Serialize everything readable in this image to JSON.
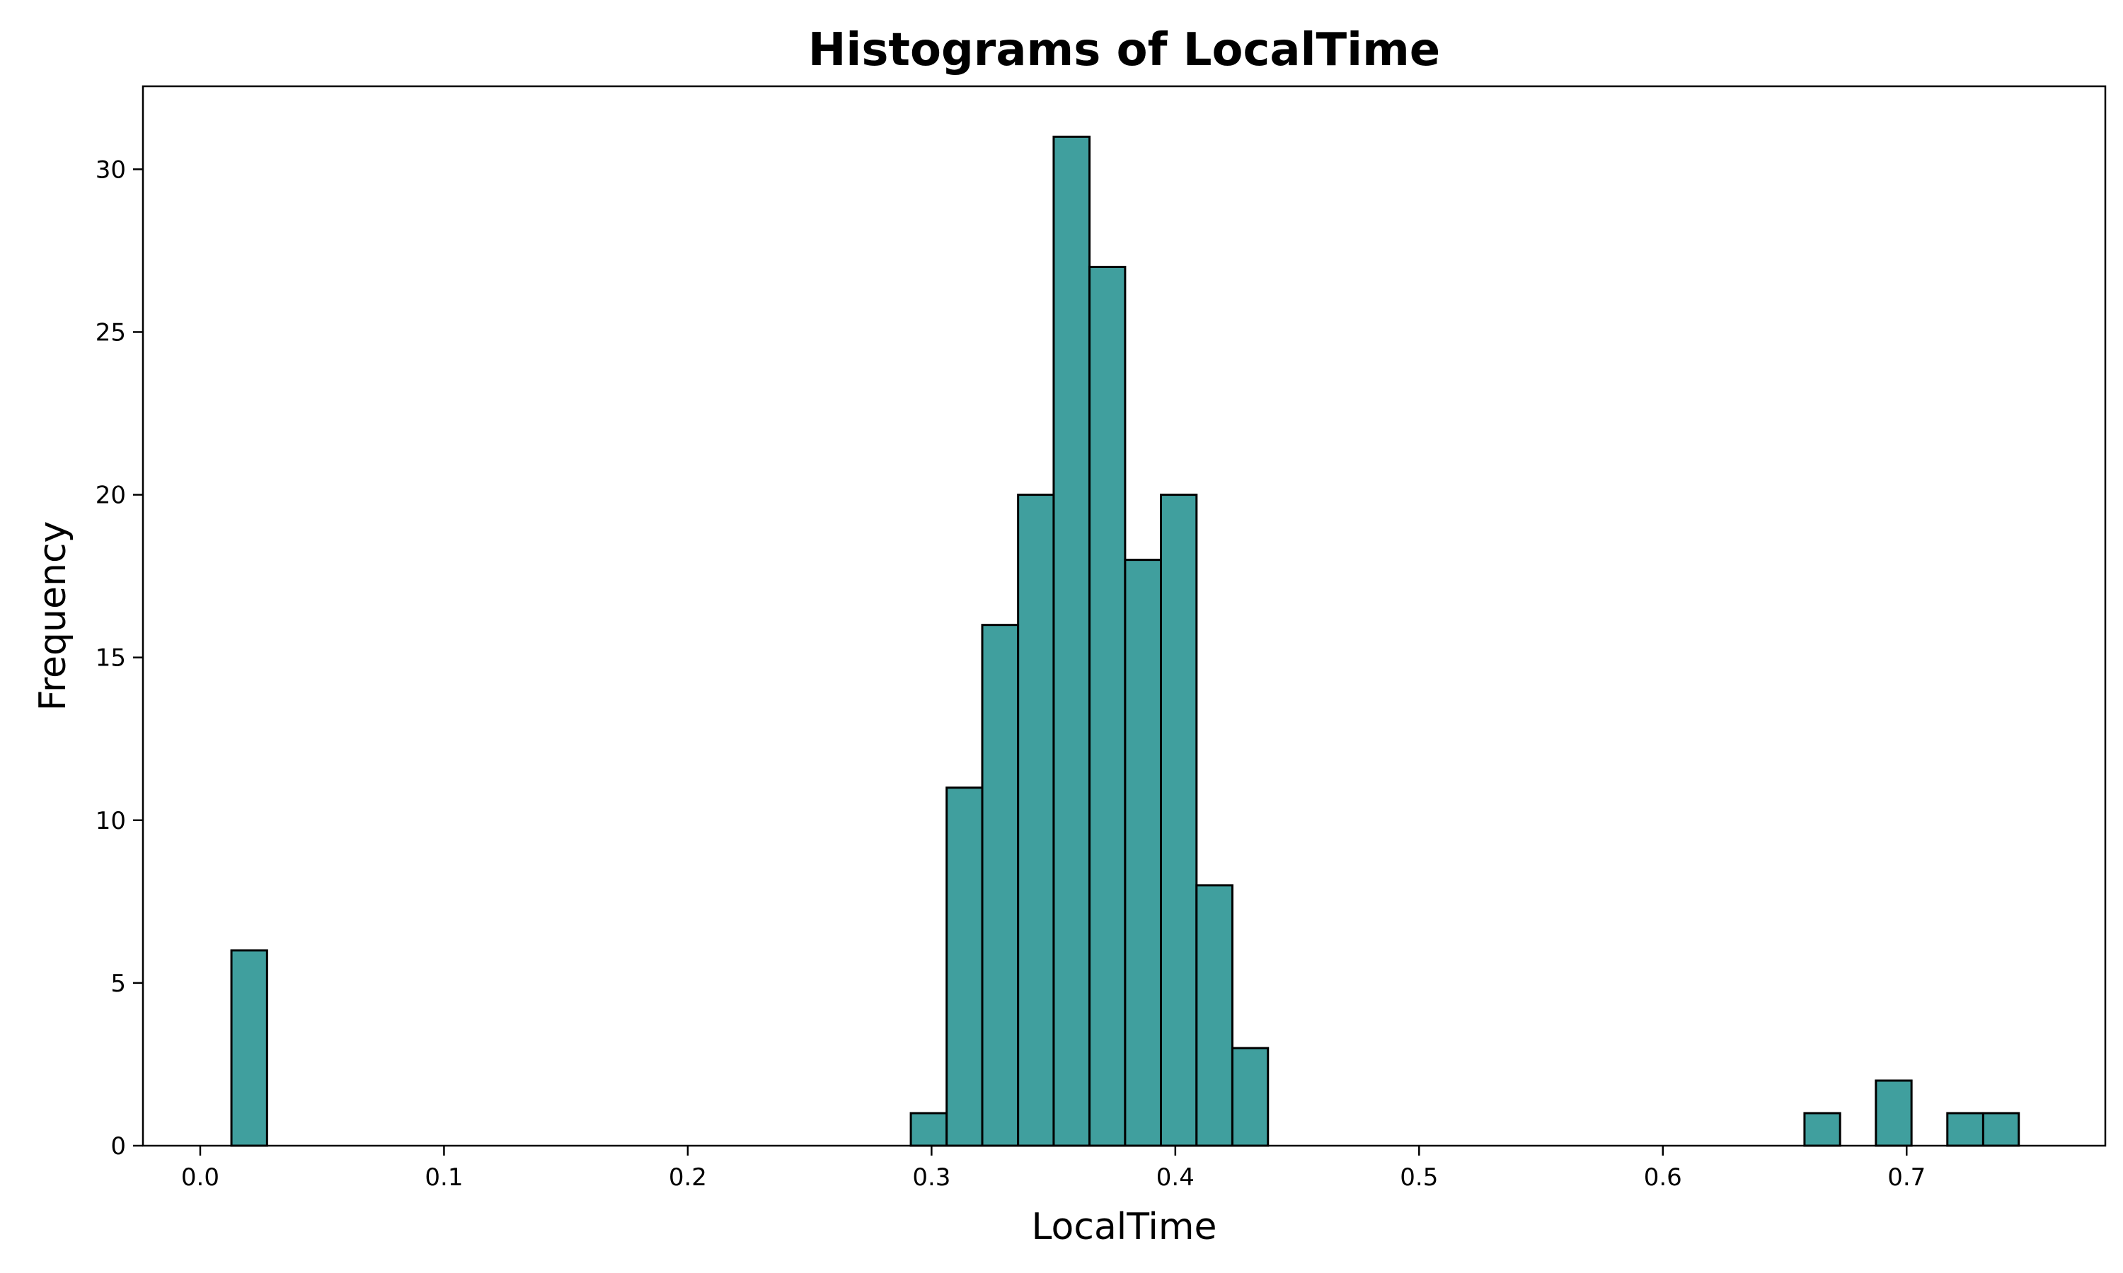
{
  "chart_data": {
    "type": "bar",
    "title": "Histograms of LocalTime",
    "xlabel": "LocalTime",
    "ylabel": "Frequency",
    "xlim": [
      -0.0235,
      0.7815
    ],
    "ylim": [
      0,
      32.55
    ],
    "xticks": [
      0.0,
      0.1,
      0.2,
      0.3,
      0.4,
      0.5,
      0.6,
      0.7
    ],
    "xtick_labels": [
      "0.0",
      "0.1",
      "0.2",
      "0.3",
      "0.4",
      "0.5",
      "0.6",
      "0.7"
    ],
    "yticks": [
      0,
      5,
      10,
      15,
      20,
      25,
      30
    ],
    "ytick_labels": [
      "0",
      "5",
      "10",
      "15",
      "20",
      "25",
      "30"
    ],
    "bins": [
      {
        "x0": 0.0128,
        "x1": 0.0274,
        "count": 6
      },
      {
        "x0": 0.2915,
        "x1": 0.3062,
        "count": 1
      },
      {
        "x0": 0.3062,
        "x1": 0.3208,
        "count": 11
      },
      {
        "x0": 0.3208,
        "x1": 0.3355,
        "count": 16
      },
      {
        "x0": 0.3355,
        "x1": 0.3501,
        "count": 20
      },
      {
        "x0": 0.3501,
        "x1": 0.3648,
        "count": 31
      },
      {
        "x0": 0.3648,
        "x1": 0.3794,
        "count": 27
      },
      {
        "x0": 0.3794,
        "x1": 0.3941,
        "count": 18
      },
      {
        "x0": 0.3941,
        "x1": 0.4087,
        "count": 20
      },
      {
        "x0": 0.4087,
        "x1": 0.4234,
        "count": 8
      },
      {
        "x0": 0.4234,
        "x1": 0.438,
        "count": 3
      },
      {
        "x0": 0.6581,
        "x1": 0.6727,
        "count": 1
      },
      {
        "x0": 0.6874,
        "x1": 0.702,
        "count": 2
      },
      {
        "x0": 0.7167,
        "x1": 0.7314,
        "count": 1
      },
      {
        "x0": 0.7314,
        "x1": 0.746,
        "count": 1
      }
    ],
    "bar_color": "#409f9e",
    "edge_color": "#000000",
    "grid": false,
    "legend": false
  }
}
